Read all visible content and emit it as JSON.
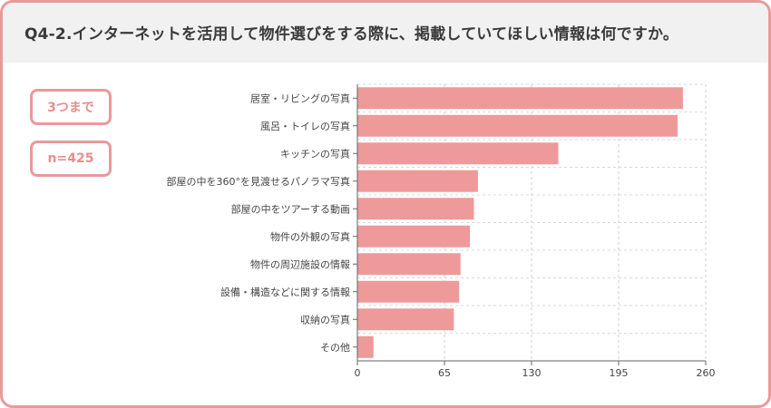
{
  "header": {
    "title": "Q4-2.インターネットを活用して物件選びをする際に、掲載していてほしい情報は何ですか。"
  },
  "badges": {
    "limit": "3つまで",
    "sample": "n=425"
  },
  "colors": {
    "accent": "#e89a9a",
    "bar": "#ee9a9a",
    "header_bg": "#f1f1f1"
  },
  "chart_data": {
    "type": "bar",
    "orientation": "horizontal",
    "categories": [
      "居室・リビングの写真",
      "風呂・トイレの写真",
      "キッチンの写真",
      "部屋の中を360°を見渡せるパノラマ写真",
      "部屋の中をツアーする動画",
      "物件の外観の写真",
      "物件の周辺施設の情報",
      "設備・構造などに関する情報",
      "収納の写真",
      "その他"
    ],
    "values": [
      243,
      239,
      150,
      90,
      87,
      84,
      77,
      76,
      72,
      12
    ],
    "xlim": [
      0,
      260
    ],
    "xticks": [
      0,
      65,
      130,
      195,
      260
    ],
    "xtick_labels": [
      "0",
      "65",
      "130",
      "195",
      "260"
    ],
    "grid": true,
    "legend": "none"
  }
}
